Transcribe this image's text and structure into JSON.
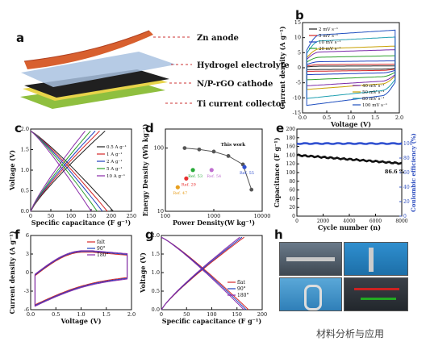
{
  "panels": {
    "a": "a",
    "b": "b",
    "c": "c",
    "d": "d",
    "e": "e",
    "f": "f",
    "g": "g",
    "h": "h"
  },
  "schematic": {
    "labels": [
      "Zn anode",
      "Hydrogel electrolyte",
      "N/P-rGO cathode",
      "Ti current collector"
    ]
  },
  "colors": {
    "zn": "#d8602f",
    "gel": "#9fb8d8",
    "cathode": "#202020",
    "ti": "#8fbf3f",
    "yellowEdge": "#e8d44a"
  },
  "chart_b": {
    "type": "line",
    "xlabel": "Voltage (V)",
    "ylabel": "Current density (A g⁻¹)",
    "xticks": [
      "0.0",
      "0.5",
      "1.0",
      "1.5",
      "2.0"
    ],
    "yticks": [
      "-15",
      "-10",
      "-5",
      "0",
      "5",
      "10",
      "15"
    ],
    "xlim": [
      -0.1,
      2.2
    ],
    "ylim": [
      -15,
      15
    ],
    "legend_left": [
      "2 mV s⁻¹",
      "5 mV s⁻¹",
      "10 mV s⁻¹",
      "20 mV s⁻¹"
    ],
    "legend_right": [
      "40 mV s⁻¹",
      "50 mV s⁻¹",
      "80 mV s⁻¹",
      "100 mV s⁻¹"
    ],
    "series": [
      {
        "name": "2 mV s⁻¹",
        "color": "#222222",
        "amp": 0.6
      },
      {
        "name": "5 mV s⁻¹",
        "color": "#d62728",
        "amp": 1.2
      },
      {
        "name": "10 mV s⁻¹",
        "color": "#1f3fbf",
        "amp": 2.3
      },
      {
        "name": "20 mV s⁻¹",
        "color": "#2ca02c",
        "amp": 4.0
      },
      {
        "name": "40 mV s⁻¹",
        "color": "#7a2aa8",
        "amp": 6.0
      },
      {
        "name": "50 mV s⁻¹",
        "color": "#c8a000",
        "amp": 7.2
      },
      {
        "name": "80 mV s⁻¹",
        "color": "#1f9fb0",
        "amp": 10.2
      },
      {
        "name": "100 mV s⁻¹",
        "color": "#1f4fbf",
        "amp": 12.5
      }
    ]
  },
  "chart_c": {
    "type": "line",
    "xlabel": "Specific capacitance (F g⁻¹)",
    "ylabel": "Voltage (V)",
    "xticks": [
      "0",
      "50",
      "100",
      "150",
      "200",
      "250"
    ],
    "yticks": [
      "0.0",
      "0.5",
      "1.0",
      "1.5",
      "2.0"
    ],
    "xlim": [
      0,
      250
    ],
    "ylim": [
      0,
      2.1
    ],
    "series": [
      {
        "name": "0.5 A g⁻¹",
        "color": "#222222",
        "cap": 205
      },
      {
        "name": "1 A g⁻¹",
        "color": "#d62728",
        "cap": 190
      },
      {
        "name": "2 A g⁻¹",
        "color": "#1f3fbf",
        "cap": 178
      },
      {
        "name": "5 A g⁻¹",
        "color": "#2ca02c",
        "cap": 165
      },
      {
        "name": "10 A g⁻¹",
        "color": "#8a2aa8",
        "cap": 150
      }
    ]
  },
  "chart_d": {
    "type": "scatter",
    "xlabel": "Power Density(W kg⁻¹)",
    "ylabel": "Energy Density (Wh kg⁻¹)",
    "xticks": [
      "100",
      "1000",
      "10000"
    ],
    "yticks": [
      "10",
      "100"
    ],
    "xlim": [
      100,
      10000
    ],
    "ylim": [
      10,
      200
    ],
    "xscale": "log",
    "yscale": "log",
    "thiswork": {
      "label": "This work",
      "x": [
        250,
        500,
        1000,
        2000,
        4000,
        6000
      ],
      "y": [
        100,
        95,
        88,
        75,
        55,
        22
      ],
      "color": "#555555"
    },
    "refs": [
      {
        "label": "Ref. 47",
        "x": 180,
        "y": 24,
        "color": "#e8a020"
      },
      {
        "label": "Ref. 29",
        "x": 270,
        "y": 33,
        "color": "#e83030"
      },
      {
        "label": "Ref. 53",
        "x": 370,
        "y": 45,
        "color": "#2aaa3a"
      },
      {
        "label": "Ref. 54",
        "x": 900,
        "y": 45,
        "color": "#c070d0"
      },
      {
        "label": "Ref. 55",
        "x": 4300,
        "y": 50,
        "color": "#3050d0"
      }
    ]
  },
  "chart_e": {
    "type": "line",
    "xlabel": "Cycle number (n)",
    "ylabel": "Capacitance (F g⁻¹)",
    "ylabel2": "Coulombic efficiency (%)",
    "xticks": [
      "0",
      "2000",
      "4000",
      "6000",
      "8000"
    ],
    "yticks": [
      "0",
      "20",
      "40",
      "60",
      "80",
      "100",
      "120",
      "140",
      "160",
      "180",
      "200"
    ],
    "yticks2": [
      "0",
      "20",
      "40",
      "60",
      "80",
      "100"
    ],
    "xlim": [
      0,
      8000
    ],
    "ylim": [
      0,
      200
    ],
    "ylim2": [
      0,
      120
    ],
    "annotation": "86.6 %",
    "cap_start": 140,
    "cap_end": 121,
    "ce": 100
  },
  "chart_f": {
    "type": "line",
    "xlabel": "Voltage (V)",
    "ylabel": "Current density (A g⁻¹)",
    "xticks": [
      "0.0",
      "0.5",
      "1.0",
      "1.5",
      "2.0"
    ],
    "yticks": [
      "-6",
      "-3",
      "0",
      "3",
      "6"
    ],
    "xlim": [
      -0.1,
      2.2
    ],
    "ylim": [
      -6,
      6
    ],
    "series": [
      {
        "name": "falt",
        "color": "#d62728"
      },
      {
        "name": "90°",
        "color": "#1f3fbf"
      },
      {
        "name": "180°",
        "color": "#8a2aa8"
      }
    ]
  },
  "chart_g": {
    "type": "line",
    "xlabel": "Specific capacitance (F g⁻¹)",
    "ylabel": "Voltage (V)",
    "xticks": [
      "0",
      "50",
      "100",
      "150",
      "200"
    ],
    "yticks": [
      "0.0",
      "0.5",
      "1.0",
      "1.5",
      "2.0"
    ],
    "xlim": [
      0,
      220
    ],
    "ylim": [
      0,
      2.1
    ],
    "series": [
      {
        "name": "flat",
        "color": "#d62728",
        "cap": 190
      },
      {
        "name": "90°",
        "color": "#1f3fbf",
        "cap": 185
      },
      {
        "name": "180°",
        "color": "#8a2aa8",
        "cap": 180
      }
    ]
  },
  "watermark": "材料分析与应用"
}
